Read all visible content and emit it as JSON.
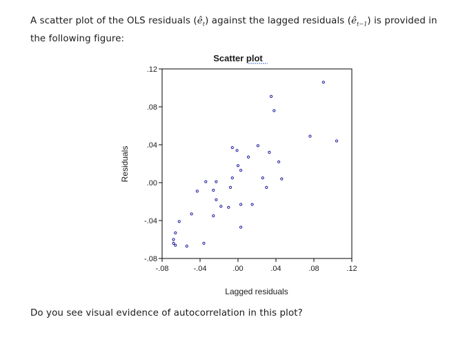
{
  "question": {
    "intro_part1": "A scatter plot of the OLS residuals (",
    "residual_symbol": "ê",
    "residual_sub": "t",
    "intro_part2": ") against the lagged residuals (",
    "lagged_symbol": "ê",
    "lagged_sub": "t−1",
    "intro_part3": ") is provided in the following figure:",
    "closing": "Do you see visual evidence of autocorrelation in this plot?"
  },
  "chart_data": {
    "type": "scatter",
    "title": "Scatter plot",
    "xlabel": "Lagged residuals",
    "ylabel": "Residuals",
    "xlim": [
      -0.08,
      0.12
    ],
    "ylim": [
      -0.08,
      0.12
    ],
    "x_ticks": [
      -0.08,
      -0.04,
      0.0,
      0.04,
      0.08,
      0.12
    ],
    "y_ticks": [
      -0.08,
      -0.04,
      0.0,
      0.04,
      0.08,
      0.12
    ],
    "x_tick_labels": [
      "-.08",
      "-.04",
      ".00",
      ".04",
      ".08",
      ".12"
    ],
    "y_tick_labels": [
      "-.08",
      "-.04",
      ".00",
      ".04",
      ".08",
      ".12"
    ],
    "grid": false,
    "marker_color": "#1a1aa0",
    "points": [
      {
        "x": 0.09,
        "y": 0.106
      },
      {
        "x": 0.035,
        "y": 0.091
      },
      {
        "x": 0.038,
        "y": 0.076
      },
      {
        "x": 0.076,
        "y": 0.049
      },
      {
        "x": 0.104,
        "y": 0.044
      },
      {
        "x": 0.021,
        "y": 0.039
      },
      {
        "x": -0.006,
        "y": 0.037
      },
      {
        "x": -0.001,
        "y": 0.034
      },
      {
        "x": 0.033,
        "y": 0.032
      },
      {
        "x": 0.011,
        "y": 0.027
      },
      {
        "x": 0.043,
        "y": 0.022
      },
      {
        "x": 0.0,
        "y": 0.018
      },
      {
        "x": 0.003,
        "y": 0.013
      },
      {
        "x": 0.026,
        "y": 0.005
      },
      {
        "x": 0.046,
        "y": 0.004
      },
      {
        "x": -0.006,
        "y": 0.005
      },
      {
        "x": -0.034,
        "y": 0.001
      },
      {
        "x": -0.023,
        "y": 0.001
      },
      {
        "x": -0.008,
        "y": -0.005
      },
      {
        "x": 0.03,
        "y": -0.005
      },
      {
        "x": -0.043,
        "y": -0.009
      },
      {
        "x": -0.026,
        "y": -0.008
      },
      {
        "x": -0.023,
        "y": -0.018
      },
      {
        "x": -0.018,
        "y": -0.025
      },
      {
        "x": 0.003,
        "y": -0.023
      },
      {
        "x": 0.015,
        "y": -0.023
      },
      {
        "x": -0.01,
        "y": -0.026
      },
      {
        "x": -0.049,
        "y": -0.033
      },
      {
        "x": -0.026,
        "y": -0.035
      },
      {
        "x": -0.062,
        "y": -0.041
      },
      {
        "x": 0.003,
        "y": -0.047
      },
      {
        "x": -0.066,
        "y": -0.053
      },
      {
        "x": -0.068,
        "y": -0.06
      },
      {
        "x": -0.068,
        "y": -0.064
      },
      {
        "x": -0.066,
        "y": -0.066
      },
      {
        "x": -0.054,
        "y": -0.067
      },
      {
        "x": -0.036,
        "y": -0.064
      }
    ]
  }
}
